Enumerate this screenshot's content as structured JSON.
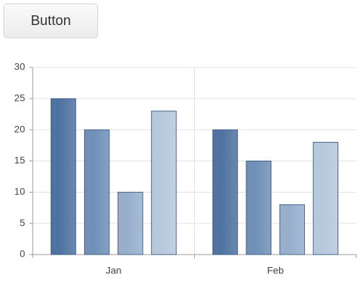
{
  "button": {
    "label": "Button"
  },
  "chart_data": {
    "type": "bar",
    "categories": [
      "Jan",
      "Feb"
    ],
    "series": [
      {
        "color": "#4f73a1",
        "values": [
          25,
          20
        ]
      },
      {
        "color": "#7090b7",
        "values": [
          20,
          15
        ]
      },
      {
        "color": "#97afcc",
        "values": [
          10,
          8
        ]
      },
      {
        "color": "#b6c8dc",
        "values": [
          23,
          18
        ]
      }
    ],
    "ylim": [
      0,
      30
    ],
    "yticks": [
      0,
      5,
      10,
      15,
      20,
      25,
      30
    ],
    "grid": true
  }
}
